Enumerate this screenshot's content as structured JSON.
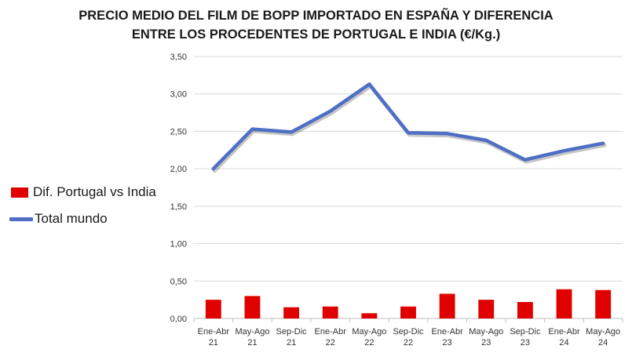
{
  "chart_data": {
    "type": "bar",
    "title": "PRECIO MEDIO DEL FILM DE BOPP IMPORTADO EN ESPAÑA Y DIFERENCIA ENTRE LOS PROCEDENTES DE PORTUGAL E INDIA (€/Kg.)",
    "title_lines": [
      "PRECIO MEDIO DEL FILM DE BOPP IMPORTADO EN ESPAÑA Y DIFERENCIA",
      "ENTRE LOS PROCEDENTES DE PORTUGAL E INDIA (€/Kg.)"
    ],
    "categories": [
      [
        "Ene-Abr",
        "21"
      ],
      [
        "May-Ago",
        "21"
      ],
      [
        "Sep-Dic",
        "21"
      ],
      [
        "Ene-Abr",
        "22"
      ],
      [
        "May-Ago",
        "22"
      ],
      [
        "Sep-Dic",
        "22"
      ],
      [
        "Ene-Abr",
        "23"
      ],
      [
        "May-Ago",
        "23"
      ],
      [
        "Sep-Dic",
        "23"
      ],
      [
        "Ene-Abr",
        "24"
      ],
      [
        "May-Ago",
        "24"
      ]
    ],
    "series": [
      {
        "name": "Dif. Portugal vs India",
        "type": "bar",
        "color": "#e00000",
        "values": [
          0.25,
          0.3,
          0.15,
          0.16,
          0.07,
          0.16,
          0.33,
          0.25,
          0.22,
          0.39,
          0.38
        ]
      },
      {
        "name": "Total mundo",
        "type": "line",
        "color": "#4f6fc4",
        "values": [
          2.0,
          2.53,
          2.49,
          2.77,
          3.13,
          2.48,
          2.47,
          2.38,
          2.12,
          2.24,
          2.34
        ]
      }
    ],
    "yticks": [
      "0,00",
      "0,50",
      "1,00",
      "1,50",
      "2,00",
      "2,50",
      "3,00",
      "3,50"
    ],
    "ylim": [
      0,
      3.5
    ],
    "grid": true,
    "legend_position": "left"
  }
}
